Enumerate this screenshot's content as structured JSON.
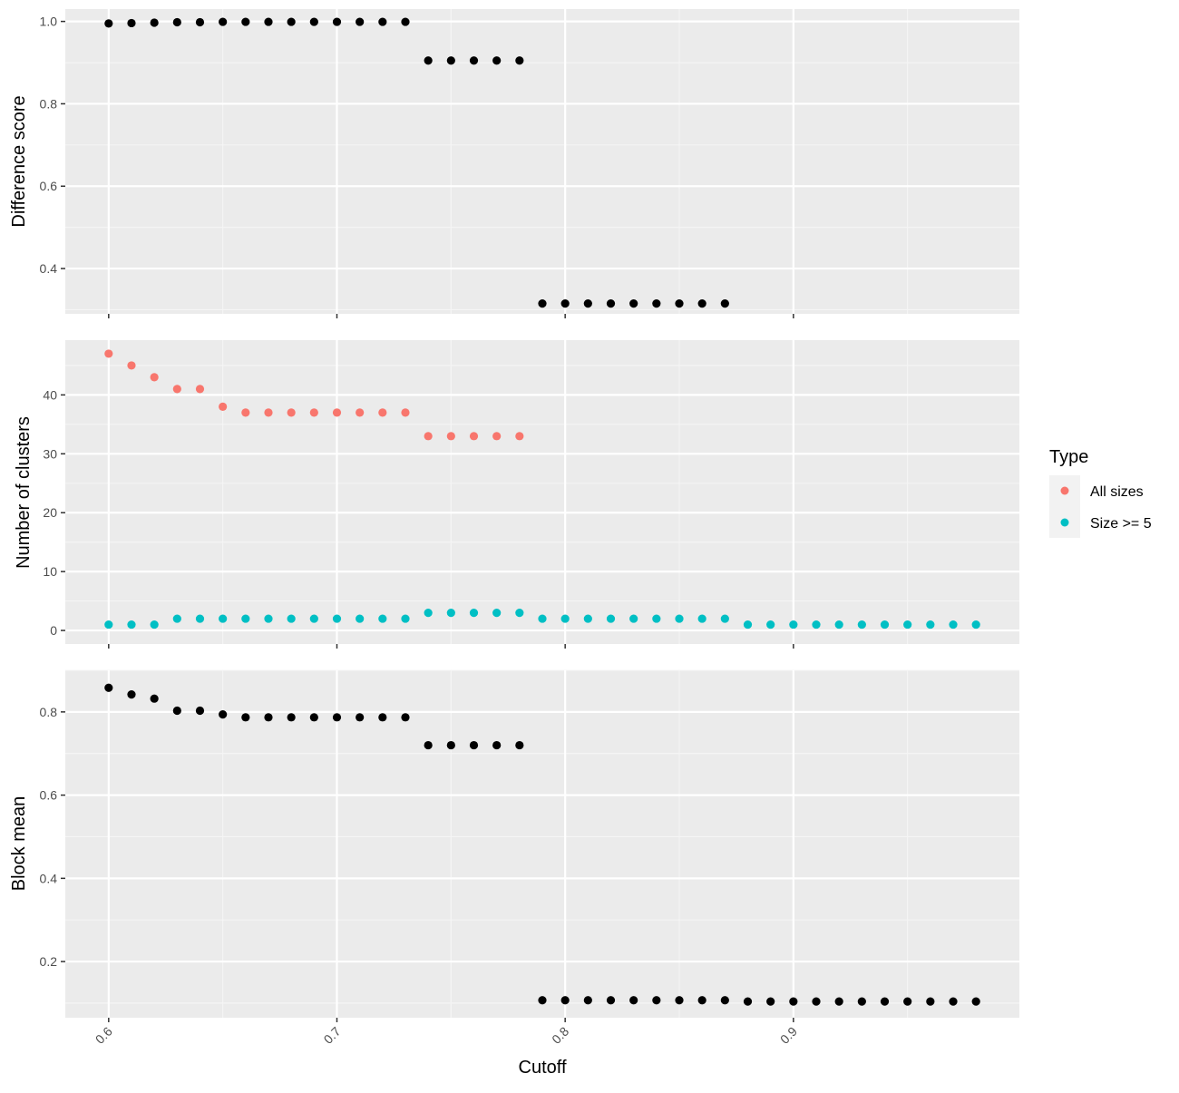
{
  "colors": {
    "panel_background": "#ebebeb",
    "grid_major": "#ffffff",
    "grid_minor": "#f5f5f5",
    "tick_text": "#4d4d4d",
    "tick_mark": "#333333",
    "all_sizes": "#f8766d",
    "size_ge_5": "#00bfc4",
    "point": "#000000"
  },
  "chart_data": {
    "type": "scatter",
    "layout": "three vertically stacked panels sharing the x axis",
    "xlabel": "Cutoff",
    "x_ticks": [
      0.6,
      0.7,
      0.8,
      0.9
    ],
    "x_tick_labels": [
      "0.6",
      "0.7",
      "0.8",
      "0.9"
    ],
    "xlim": [
      0.581,
      0.999
    ],
    "grid": true,
    "legend": {
      "title": "Type",
      "position": "right",
      "entries": [
        {
          "label": "All sizes",
          "color": "#f8766d"
        },
        {
          "label": "Size >= 5",
          "color": "#00bfc4"
        }
      ]
    },
    "panels": [
      {
        "ylabel": "Difference score",
        "ylim": [
          0.29,
          1.03
        ],
        "y_ticks": [
          0.4,
          0.6,
          0.8,
          1.0
        ],
        "y_tick_labels": [
          "0.4",
          "0.6",
          "0.8",
          "1.0"
        ],
        "series": [
          {
            "x": [
              0.6,
              0.61,
              0.62,
              0.63,
              0.64,
              0.65,
              0.66,
              0.67,
              0.68,
              0.69,
              0.7,
              0.71,
              0.72,
              0.73,
              0.74,
              0.75,
              0.76,
              0.77,
              0.78,
              0.79,
              0.8,
              0.81,
              0.82,
              0.83,
              0.84,
              0.85,
              0.86,
              0.87
            ],
            "y": [
              0.995,
              0.996,
              0.997,
              0.998,
              0.998,
              0.999,
              0.999,
              0.999,
              0.999,
              0.999,
              0.999,
              0.999,
              0.999,
              0.999,
              0.905,
              0.905,
              0.905,
              0.905,
              0.905,
              0.315,
              0.315,
              0.315,
              0.315,
              0.315,
              0.315,
              0.315,
              0.315,
              0.315
            ],
            "color": "#000000"
          }
        ]
      },
      {
        "ylabel": "Number of clusters",
        "ylim": [
          -2.3,
          49.3
        ],
        "y_ticks": [
          0,
          10,
          20,
          30,
          40
        ],
        "y_tick_labels": [
          "0",
          "10",
          "20",
          "30",
          "40"
        ],
        "series": [
          {
            "name": "All sizes",
            "color": "#f8766d",
            "x": [
              0.6,
              0.61,
              0.62,
              0.63,
              0.64,
              0.65,
              0.66,
              0.67,
              0.68,
              0.69,
              0.7,
              0.71,
              0.72,
              0.73,
              0.74,
              0.75,
              0.76,
              0.77,
              0.78
            ],
            "y": [
              47,
              45,
              43,
              41,
              41,
              38,
              37,
              37,
              37,
              37,
              37,
              37,
              37,
              37,
              33,
              33,
              33,
              33,
              33
            ]
          },
          {
            "name": "Size >= 5",
            "color": "#00bfc4",
            "x": [
              0.6,
              0.61,
              0.62,
              0.63,
              0.64,
              0.65,
              0.66,
              0.67,
              0.68,
              0.69,
              0.7,
              0.71,
              0.72,
              0.73,
              0.74,
              0.75,
              0.76,
              0.77,
              0.78,
              0.79,
              0.8,
              0.81,
              0.82,
              0.83,
              0.84,
              0.85,
              0.86,
              0.87,
              0.88,
              0.89,
              0.9,
              0.91,
              0.92,
              0.93,
              0.94,
              0.95,
              0.96,
              0.97,
              0.98
            ],
            "y": [
              1,
              1,
              1,
              2,
              2,
              2,
              2,
              2,
              2,
              2,
              2,
              2,
              2,
              2,
              3,
              3,
              3,
              3,
              3,
              2,
              2,
              2,
              2,
              2,
              2,
              2,
              2,
              2,
              1,
              1,
              1,
              1,
              1,
              1,
              1,
              1,
              1,
              1,
              1
            ]
          }
        ]
      },
      {
        "ylabel": "Block mean",
        "ylim": [
          0.065,
          0.9
        ],
        "y_ticks": [
          0.2,
          0.4,
          0.6,
          0.8
        ],
        "y_tick_labels": [
          "0.2",
          "0.4",
          "0.6",
          "0.8"
        ],
        "series": [
          {
            "x": [
              0.6,
              0.61,
              0.62,
              0.63,
              0.64,
              0.65,
              0.66,
              0.67,
              0.68,
              0.69,
              0.7,
              0.71,
              0.72,
              0.73,
              0.74,
              0.75,
              0.76,
              0.77,
              0.78,
              0.79,
              0.8,
              0.81,
              0.82,
              0.83,
              0.84,
              0.85,
              0.86,
              0.87,
              0.88,
              0.89,
              0.9,
              0.91,
              0.92,
              0.93,
              0.94,
              0.95,
              0.96,
              0.97,
              0.98
            ],
            "y": [
              0.858,
              0.842,
              0.832,
              0.803,
              0.803,
              0.794,
              0.787,
              0.787,
              0.787,
              0.787,
              0.787,
              0.787,
              0.787,
              0.787,
              0.72,
              0.72,
              0.72,
              0.72,
              0.72,
              0.107,
              0.107,
              0.107,
              0.107,
              0.107,
              0.107,
              0.107,
              0.107,
              0.107,
              0.104,
              0.104,
              0.104,
              0.104,
              0.104,
              0.104,
              0.104,
              0.104,
              0.104,
              0.104,
              0.104
            ],
            "color": "#000000"
          }
        ]
      }
    ]
  }
}
